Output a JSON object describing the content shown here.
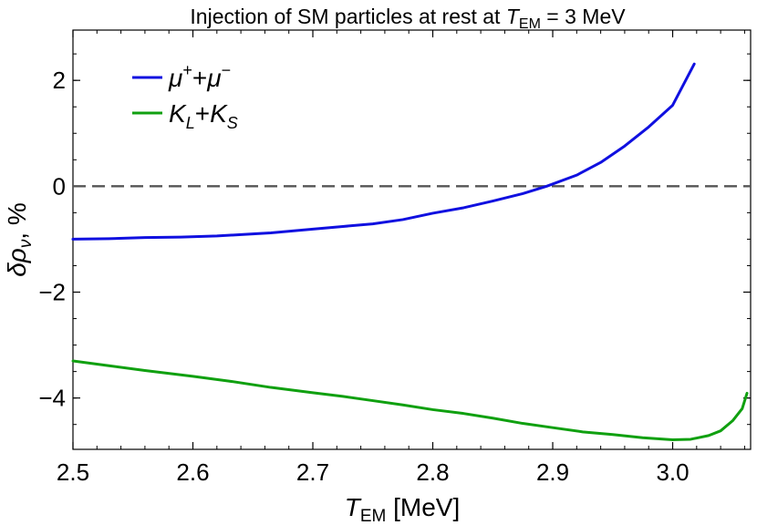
{
  "chart_data": {
    "type": "line",
    "title": {
      "prefix": "Injection of SM particles at rest at ",
      "sym": "T",
      "sub": "EM",
      "suffix": " = 3 MeV"
    },
    "xlabel": {
      "sym": "T",
      "sub": "EM",
      "suffix": " [MeV]"
    },
    "ylabel": {
      "sym": "δρ",
      "sub": "ν",
      "suffix": ", %"
    },
    "xlim": [
      2.5,
      3.065
    ],
    "ylim": [
      -4.97,
      2.95
    ],
    "xticks": [
      "2.5",
      "2.6",
      "2.7",
      "2.8",
      "2.9",
      "3.0"
    ],
    "yticks": [
      "−4",
      "−2",
      "0",
      "2"
    ],
    "reference_line": {
      "y": 0,
      "style": "dashed",
      "color": "#555555"
    },
    "legend_position": "top-left",
    "series": [
      {
        "name": "μ⁺+μ⁻",
        "legend": {
          "a": "μ",
          "a_sup": "+",
          "mid": "+",
          "b": "μ",
          "b_sup": "−"
        },
        "color": "#1010e0",
        "points": [
          [
            2.5,
            -1.0
          ],
          [
            2.53,
            -0.99
          ],
          [
            2.56,
            -0.97
          ],
          [
            2.59,
            -0.96
          ],
          [
            2.62,
            -0.94
          ],
          [
            2.665,
            -0.88
          ],
          [
            2.7,
            -0.81
          ],
          [
            2.725,
            -0.76
          ],
          [
            2.75,
            -0.71
          ],
          [
            2.775,
            -0.63
          ],
          [
            2.8,
            -0.51
          ],
          [
            2.825,
            -0.41
          ],
          [
            2.85,
            -0.28
          ],
          [
            2.875,
            -0.14
          ],
          [
            2.895,
            0.0
          ],
          [
            2.92,
            0.21
          ],
          [
            2.94,
            0.45
          ],
          [
            2.96,
            0.76
          ],
          [
            2.98,
            1.12
          ],
          [
            3.0,
            1.53
          ],
          [
            3.018,
            2.31
          ]
        ]
      },
      {
        "name": "K_L+K_S",
        "legend": {
          "a": "K",
          "a_sub": "L",
          "mid": "+",
          "b": "K",
          "b_sub": "S"
        },
        "color": "#10a010",
        "points": [
          [
            2.5,
            -3.3
          ],
          [
            2.53,
            -3.39
          ],
          [
            2.56,
            -3.48
          ],
          [
            2.6,
            -3.59
          ],
          [
            2.63,
            -3.68
          ],
          [
            2.665,
            -3.8
          ],
          [
            2.7,
            -3.9
          ],
          [
            2.725,
            -3.97
          ],
          [
            2.75,
            -4.05
          ],
          [
            2.775,
            -4.13
          ],
          [
            2.8,
            -4.22
          ],
          [
            2.825,
            -4.29
          ],
          [
            2.85,
            -4.38
          ],
          [
            2.875,
            -4.48
          ],
          [
            2.9,
            -4.56
          ],
          [
            2.925,
            -4.64
          ],
          [
            2.95,
            -4.69
          ],
          [
            2.975,
            -4.75
          ],
          [
            3.0,
            -4.79
          ],
          [
            3.015,
            -4.78
          ],
          [
            3.03,
            -4.71
          ],
          [
            3.04,
            -4.62
          ],
          [
            3.05,
            -4.43
          ],
          [
            3.058,
            -4.2
          ],
          [
            3.062,
            -3.91
          ]
        ]
      }
    ]
  }
}
